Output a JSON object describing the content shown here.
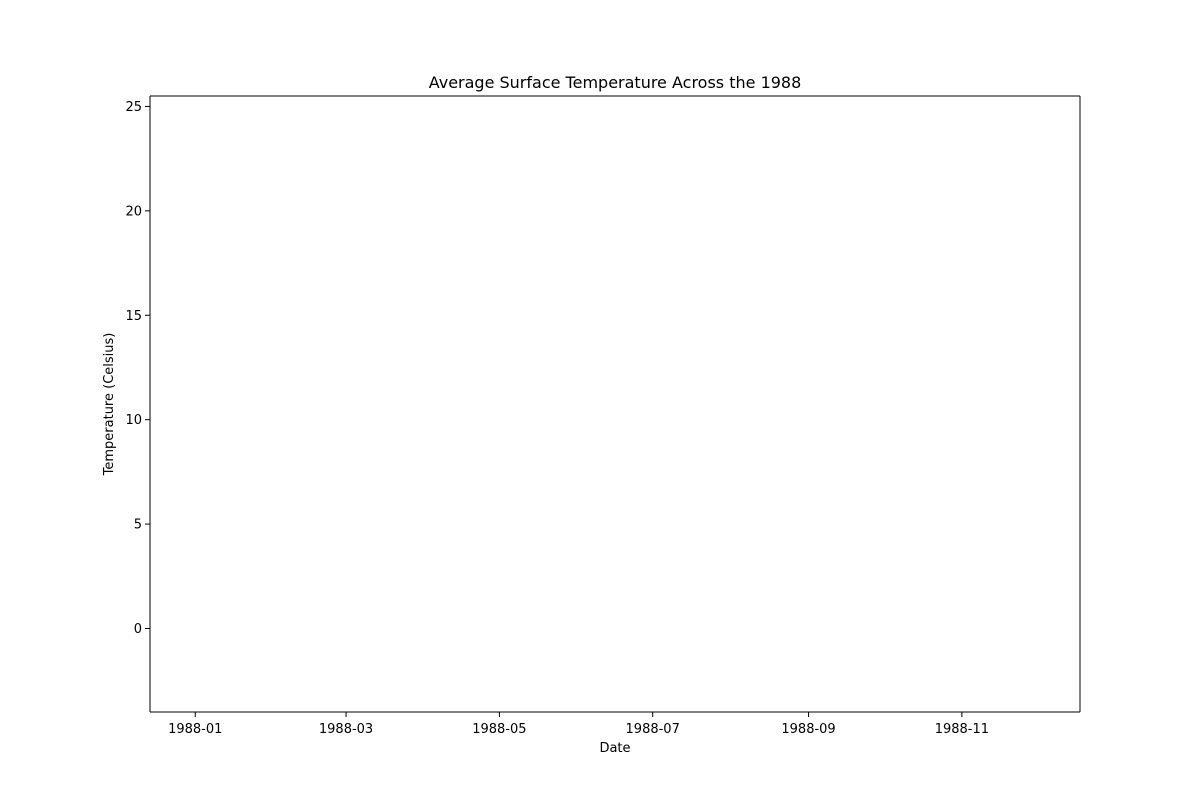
{
  "chart_data": {
    "type": "line",
    "title": "Average Surface Temperature Across the 1988",
    "xlabel": "Date",
    "ylabel": "Temperature (Celsius)",
    "x_axis_type": "date",
    "xlim": [
      "1987-12-14",
      "1988-12-18"
    ],
    "ylim": [
      -4,
      25.5
    ],
    "x_ticks": [
      "1988-01",
      "1988-03",
      "1988-05",
      "1988-07",
      "1988-09",
      "1988-11"
    ],
    "x_tick_dates": [
      "1988-01-01",
      "1988-03-01",
      "1988-05-01",
      "1988-07-01",
      "1988-09-01",
      "1988-11-01"
    ],
    "y_ticks": [
      0,
      5,
      10,
      15,
      20,
      25
    ],
    "grid": false,
    "legend": "none",
    "series": []
  }
}
